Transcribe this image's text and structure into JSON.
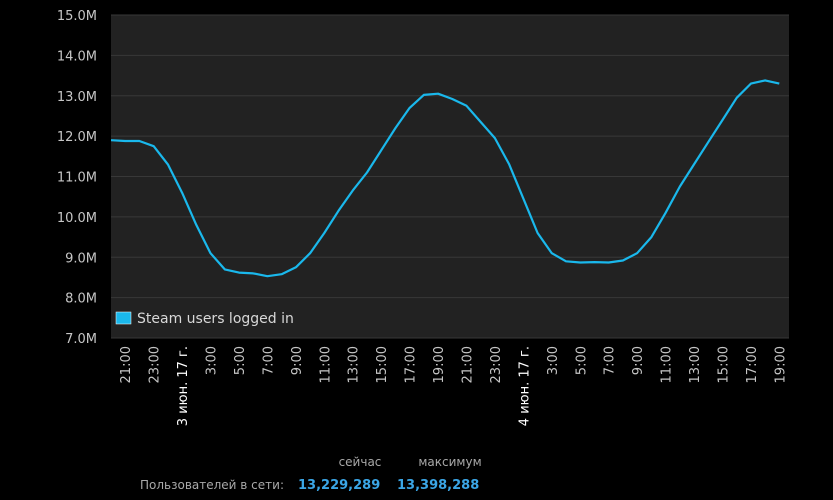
{
  "chart_data": {
    "type": "line",
    "categories": [
      null,
      "21:00",
      null,
      "23:00",
      null,
      "3 июн. 17 г.",
      null,
      "3:00",
      null,
      "5:00",
      null,
      "7:00",
      null,
      "9:00",
      null,
      "11:00",
      null,
      "13:00",
      null,
      "15:00",
      null,
      "17:00",
      null,
      "19:00",
      null,
      "21:00",
      null,
      "23:00",
      null,
      "4 июн. 17 г.",
      null,
      "3:00",
      null,
      "5:00",
      null,
      "7:00",
      null,
      "9:00",
      null,
      "11:00",
      null,
      "13:00",
      null,
      "15:00",
      null,
      "17:00",
      null,
      "19:00"
    ],
    "series": [
      {
        "name": "Steam users logged in",
        "color": "#1ab8ec",
        "values": [
          11.9,
          11.88,
          11.88,
          11.75,
          11.3,
          10.6,
          9.8,
          9.1,
          8.7,
          8.62,
          8.6,
          8.53,
          8.58,
          8.75,
          9.1,
          9.6,
          10.15,
          10.65,
          11.1,
          11.65,
          12.2,
          12.7,
          13.02,
          13.05,
          12.92,
          12.75,
          12.35,
          11.95,
          11.3,
          10.45,
          9.6,
          9.1,
          8.9,
          8.87,
          8.88,
          8.87,
          8.92,
          9.1,
          9.5,
          10.1,
          10.75,
          11.3,
          11.85,
          12.4,
          12.95,
          13.3,
          13.38,
          13.3
        ]
      }
    ],
    "ylim": [
      7,
      15
    ],
    "yticks": [
      {
        "value": 7,
        "label": "7.0M"
      },
      {
        "value": 8,
        "label": "8.0M"
      },
      {
        "value": 9,
        "label": "9.0M"
      },
      {
        "value": 10,
        "label": "10.0M"
      },
      {
        "value": 11,
        "label": "11.0M"
      },
      {
        "value": 12,
        "label": "12.0M"
      },
      {
        "value": 13,
        "label": "13.0M"
      },
      {
        "value": 14,
        "label": "14.0M"
      },
      {
        "value": 15,
        "label": "15.0M"
      }
    ],
    "grid": true,
    "legend": "bottom-left"
  },
  "stats": {
    "headers": [
      "сейчас",
      "максимум"
    ],
    "label": "Пользователей в сети:",
    "values": [
      "13,229,289",
      "13,398,288"
    ]
  }
}
